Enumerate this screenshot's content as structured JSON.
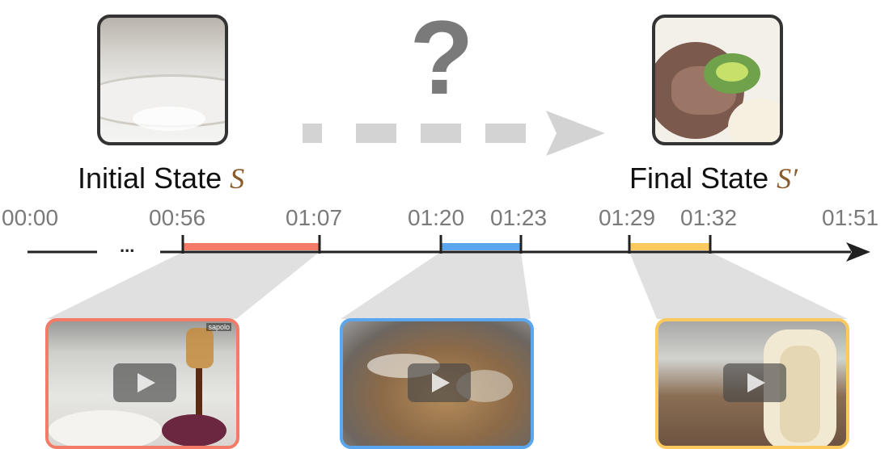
{
  "initial_state": {
    "label": "Initial State",
    "symbol": "S"
  },
  "final_state": {
    "label": "Final State",
    "symbol": "S′"
  },
  "unknown_marker": "?",
  "timeline": {
    "ellipsis": "...",
    "ticks": [
      "00:00",
      "00:56",
      "01:07",
      "01:20",
      "01:23",
      "01:29",
      "01:32",
      "01:51"
    ]
  },
  "clips": [
    {
      "start": "00:56",
      "end": "01:07",
      "color": "#f47b67",
      "watermark": "sapolo"
    },
    {
      "start": "01:20",
      "end": "01:23",
      "color": "#5aa7ef"
    },
    {
      "start": "01:29",
      "end": "01:32",
      "color": "#fbc95d"
    }
  ]
}
